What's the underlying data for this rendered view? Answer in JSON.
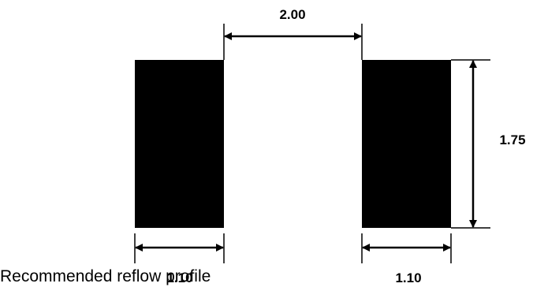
{
  "diagram": {
    "dimensions": {
      "gap": "2.00",
      "height": "1.75",
      "left_pad_width": "1.10",
      "right_pad_width": "1.10"
    },
    "caption": "Recommended reflow profile",
    "colors": {
      "pad": "#000000",
      "line": "#000000",
      "background": "#ffffff"
    }
  }
}
